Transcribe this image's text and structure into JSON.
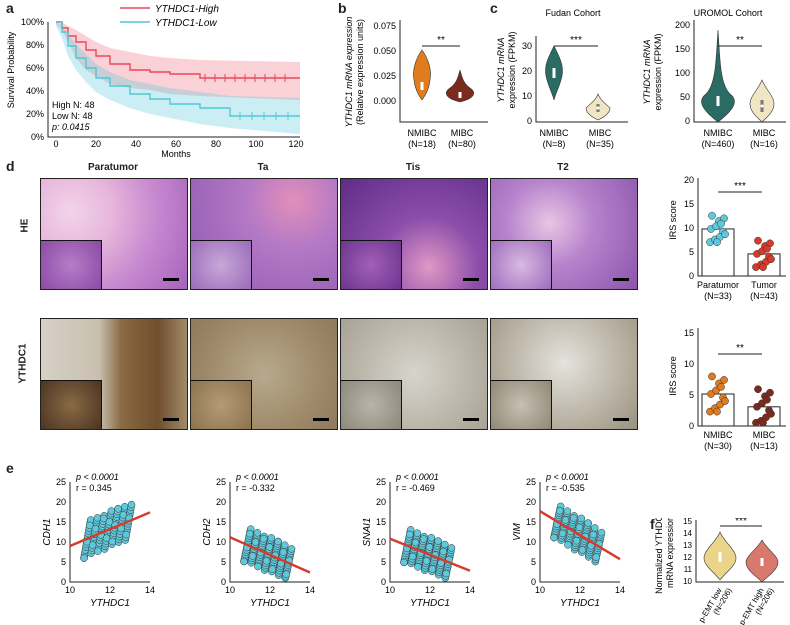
{
  "panels": {
    "a": "a",
    "b": "b",
    "c": "c",
    "d": "d",
    "e": "e",
    "f": "f"
  },
  "colors": {
    "high": "#e8495b",
    "low": "#4fc8d8",
    "orange": "#e07b1e",
    "darkred": "#7b2a1e",
    "teal": "#2a6b63",
    "cream": "#f1e6c4",
    "cyan": "#5fc9dc",
    "red": "#d83a2a",
    "gold": "#e9d48a",
    "salmon": "#d9786c",
    "he": "#b26fc4",
    "ihc": "#a8977c"
  },
  "legend": {
    "high": "YTHDC1-High",
    "low": "YTHDC1-Low"
  },
  "a": {
    "ylabel": "Survival Probability",
    "xlabel": "Months",
    "yticks": [
      "100%",
      "80%",
      "60%",
      "40%",
      "20%",
      "0%"
    ],
    "xticks": [
      "0",
      "20",
      "40",
      "60",
      "80",
      "100",
      "120"
    ],
    "stats": [
      "High N: 48",
      "Low N: 48",
      "p: 0.0415"
    ]
  },
  "b": {
    "ylabel1": "YTHDC1 mRNA expression",
    "ylabel2": "(Relative expression units)",
    "yticks": [
      "0.000",
      "0.025",
      "0.050",
      "0.075"
    ],
    "sig": "**",
    "groups": [
      "NMIBC",
      "MIBC"
    ],
    "ns": [
      "(N=18)",
      "(N=80)"
    ]
  },
  "c1": {
    "title": "Fudan Cohort",
    "ylabel1": "YTHDC1 mRNA",
    "ylabel2": "expression (FPKM)",
    "yticks": [
      "0",
      "10",
      "20",
      "30"
    ],
    "sig": "***",
    "groups": [
      "NMIBC",
      "MIBC"
    ],
    "ns": [
      "(N=8)",
      "(N=35)"
    ]
  },
  "c2": {
    "title": "UROMOL Cohort",
    "ylabel1": "YTHDC1 mRNA",
    "ylabel2": "expression (FPKM)",
    "yticks": [
      "0",
      "50",
      "100",
      "150",
      "200"
    ],
    "sig": "**",
    "groups": [
      "NMIBC",
      "MIBC"
    ],
    "ns": [
      "(N=460)",
      "(N=16)"
    ]
  },
  "d": {
    "cols": [
      "Paratumor",
      "Ta",
      "Tis",
      "T2"
    ],
    "rows": [
      "HE",
      "YTHDC1"
    ],
    "irs1": {
      "ylabel": "IRS score",
      "yticks": [
        "0",
        "5",
        "10",
        "15",
        "20"
      ],
      "sig": "***",
      "groups": [
        "Paratumor",
        "Tumor"
      ],
      "ns": [
        "(N=33)",
        "(N=43)"
      ],
      "means": [
        9.8,
        4.6
      ]
    },
    "irs2": {
      "ylabel": "IRS score",
      "yticks": [
        "0",
        "5",
        "10",
        "15"
      ],
      "sig": "**",
      "groups": [
        "NMIBC",
        "MIBC"
      ],
      "ns": [
        "(N=30)",
        "(N=13)"
      ],
      "means": [
        5.0,
        3.0
      ]
    }
  },
  "e": {
    "xlabel": "YTHDC1",
    "xticks": [
      "10",
      "12",
      "14"
    ],
    "yticks": [
      "0",
      "5",
      "10",
      "15",
      "20",
      "25"
    ],
    "plots": [
      {
        "ylabel": "CDH1",
        "p": "p < 0.0001",
        "r": "r = 0.345",
        "slope": 2.1
      },
      {
        "ylabel": "CDH2",
        "p": "p < 0.0001",
        "r": "r = -0.332",
        "slope": -2.2
      },
      {
        "ylabel": "SNAI1",
        "p": "p < 0.0001",
        "r": "r = -0.469",
        "slope": -2.0
      },
      {
        "ylabel": "VIM",
        "p": "p < 0.0001",
        "r": "r = -0.535",
        "slope": -3.0
      }
    ]
  },
  "f": {
    "ylabel1": "Normalized YTHDC1",
    "ylabel2": "mRNA expression",
    "yticks": [
      "10",
      "11",
      "12",
      "13",
      "14",
      "15"
    ],
    "sig": "***",
    "groups": [
      "p-EMT low",
      "p-EMT high"
    ],
    "ns": [
      "(N=206)",
      "(N=206)"
    ]
  }
}
